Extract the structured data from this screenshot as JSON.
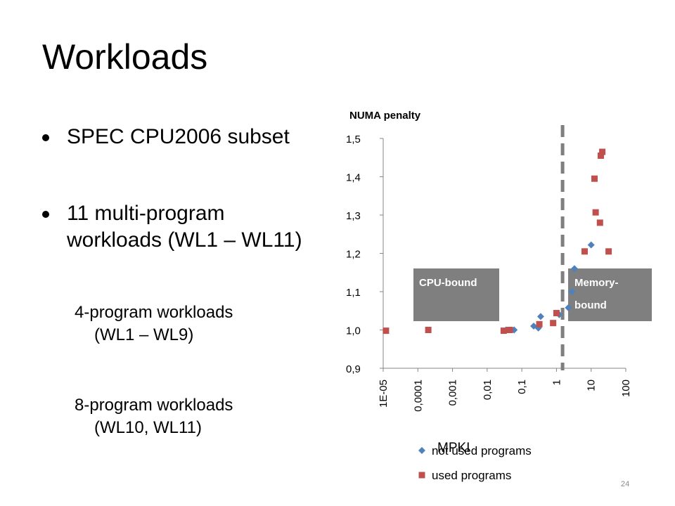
{
  "slide": {
    "title": "Workloads",
    "bullets": [
      {
        "lines": [
          "SPEC CPU2006 subset"
        ]
      },
      {
        "lines": [
          "11 multi-program",
          "workloads (WL1 – WL11)"
        ]
      }
    ],
    "sub_items": [
      {
        "lines": [
          "4-program workloads",
          "(WL1 – WL9)"
        ]
      },
      {
        "lines": [
          "8-program workloads",
          "(WL10, WL11)"
        ]
      }
    ],
    "page_number": "24"
  },
  "chart_data": {
    "type": "scatter",
    "title": "",
    "ylabel": "NUMA penalty",
    "xlabel": "MPKI",
    "x_scale": "log",
    "xlim": [
      1e-05,
      100
    ],
    "ylim": [
      0.9,
      1.5
    ],
    "x_tick_labels": [
      "1E-05",
      "0,0001",
      "0,001",
      "0,01",
      "0,1",
      "1",
      "10",
      "100"
    ],
    "y_tick_labels": [
      "0,9",
      "1,0",
      "1,1",
      "1,2",
      "1,3",
      "1,4",
      "1,5"
    ],
    "y_ticks": [
      0.9,
      1.0,
      1.1,
      1.2,
      1.3,
      1.4,
      1.5
    ],
    "grid": false,
    "legend_position": "bottom",
    "threshold": {
      "x": 1.5,
      "style": "dashed",
      "color": "#7f7f7f"
    },
    "regions": [
      {
        "lines": [
          "CPU-bound"
        ],
        "color": "#7f7f7f"
      },
      {
        "lines": [
          "Memory-",
          "bound"
        ],
        "color": "#7f7f7f"
      }
    ],
    "series": [
      {
        "name": "not used programs",
        "marker": "diamond",
        "color": "#4f81bd",
        "points": [
          [
            0.035,
            1.0
          ],
          [
            0.06,
            1.0
          ],
          [
            0.22,
            1.01
          ],
          [
            0.3,
            1.005
          ],
          [
            0.35,
            1.035
          ],
          [
            1.2,
            1.04
          ],
          [
            2.2,
            1.058
          ],
          [
            2.8,
            1.1
          ],
          [
            3.3,
            1.16
          ],
          [
            10,
            1.222
          ]
        ]
      },
      {
        "name": "used programs",
        "marker": "square",
        "color": "#c0504d",
        "points": [
          [
            1.2e-05,
            0.998
          ],
          [
            0.0002,
            1.0
          ],
          [
            0.03,
            0.998
          ],
          [
            0.045,
            1.0
          ],
          [
            0.32,
            1.015
          ],
          [
            0.8,
            1.018
          ],
          [
            1.0,
            1.044
          ],
          [
            6.5,
            1.205
          ],
          [
            12.5,
            1.395
          ],
          [
            13.5,
            1.307
          ],
          [
            18,
            1.28
          ],
          [
            19,
            1.455
          ],
          [
            21,
            1.465
          ],
          [
            32,
            1.205
          ]
        ]
      }
    ]
  }
}
